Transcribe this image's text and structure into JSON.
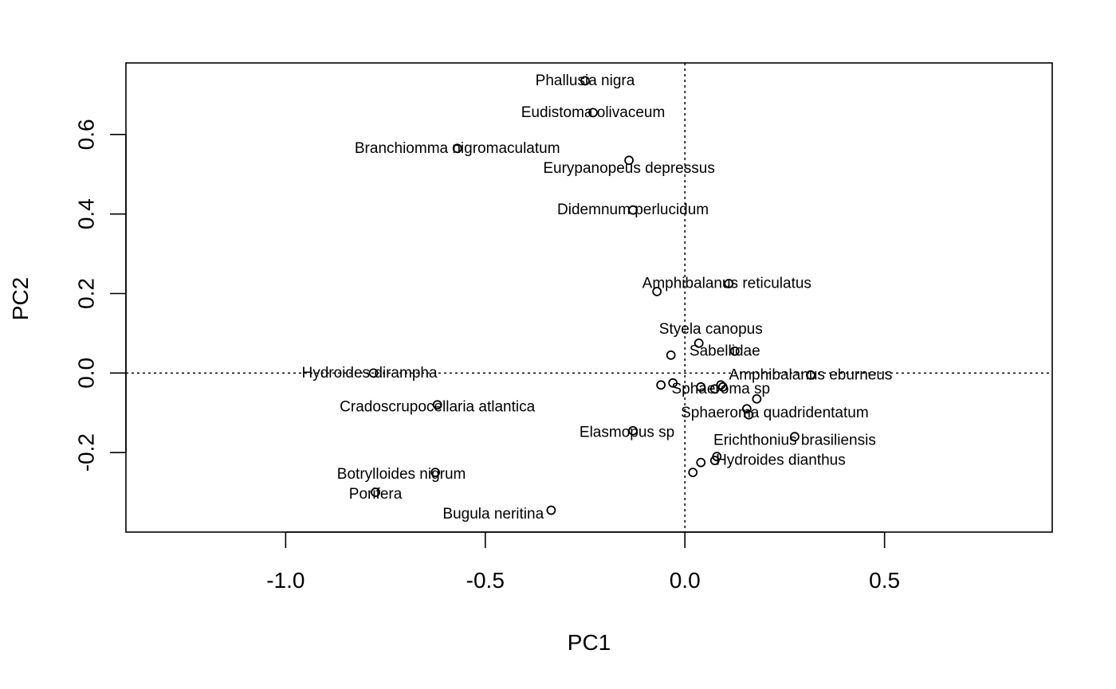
{
  "chart_data": {
    "type": "scatter",
    "title": "",
    "xlabel": "PC1",
    "ylabel": "PC2",
    "xlim": [
      -1.4,
      0.92
    ],
    "ylim": [
      -0.4,
      0.78
    ],
    "x_ticks": [
      -1.0,
      -0.5,
      0.0,
      0.5
    ],
    "x_tick_labels": [
      "-1.0",
      "-0.5",
      "0.0",
      "0.5"
    ],
    "y_ticks": [
      -0.2,
      0.0,
      0.2,
      0.4,
      0.6
    ],
    "y_tick_labels": [
      "-0.2",
      "0.0",
      "0.2",
      "0.4",
      "0.6"
    ],
    "reference_lines": {
      "x": 0,
      "y": 0,
      "style": "dotted"
    },
    "grid": false,
    "legend": "none",
    "points": [
      {
        "x": -0.25,
        "y": 0.735
      },
      {
        "x": -0.23,
        "y": 0.655
      },
      {
        "x": -0.57,
        "y": 0.565
      },
      {
        "x": -0.14,
        "y": 0.535
      },
      {
        "x": -0.13,
        "y": 0.41
      },
      {
        "x": -0.07,
        "y": 0.205
      },
      {
        "x": -0.035,
        "y": 0.045
      },
      {
        "x": 0.035,
        "y": 0.075
      },
      {
        "x": -0.06,
        "y": -0.03
      },
      {
        "x": -0.03,
        "y": -0.025
      },
      {
        "x": 0.04,
        "y": -0.035
      },
      {
        "x": 0.075,
        "y": -0.04
      },
      {
        "x": 0.09,
        "y": -0.03
      },
      {
        "x": 0.095,
        "y": -0.035
      },
      {
        "x": 0.18,
        "y": -0.065
      },
      {
        "x": 0.155,
        "y": -0.09
      },
      {
        "x": 0.16,
        "y": -0.105
      },
      {
        "x": -0.13,
        "y": -0.145
      },
      {
        "x": 0.275,
        "y": -0.16
      },
      {
        "x": 0.08,
        "y": -0.21
      },
      {
        "x": 0.075,
        "y": -0.22
      },
      {
        "x": 0.04,
        "y": -0.225
      },
      {
        "x": 0.02,
        "y": -0.25
      },
      {
        "x": -0.625,
        "y": -0.25
      },
      {
        "x": -0.775,
        "y": -0.3
      },
      {
        "x": -0.335,
        "y": -0.345
      },
      {
        "x": -0.78,
        "y": 0.0
      },
      {
        "x": -0.62,
        "y": -0.08
      },
      {
        "x": 0.11,
        "y": 0.225
      },
      {
        "x": 0.315,
        "y": -0.005
      },
      {
        "x": 0.125,
        "y": 0.055
      }
    ],
    "labels": [
      {
        "text": "Phallusia nigra",
        "x": -0.25,
        "y": 0.735
      },
      {
        "text": "Eudistoma olivaceum",
        "x": -0.23,
        "y": 0.655
      },
      {
        "text": "Branchiomma nigromaculatum",
        "x": -0.57,
        "y": 0.565
      },
      {
        "text": "Eurypanopeus depressus",
        "x": -0.14,
        "y": 0.515
      },
      {
        "text": "Didemnum perlucidum",
        "x": -0.13,
        "y": 0.41
      },
      {
        "text": "Amphibalanus reticulatus",
        "x": 0.105,
        "y": 0.225
      },
      {
        "text": "Styela canopus",
        "x": 0.065,
        "y": 0.11
      },
      {
        "text": "Sabellidae",
        "x": 0.1,
        "y": 0.055
      },
      {
        "text": "Hydroides dirampha",
        "x": -0.79,
        "y": 0.0
      },
      {
        "text": "Amphibalanus eburneus",
        "x": 0.315,
        "y": -0.005
      },
      {
        "text": "Sphaeroma sp",
        "x": 0.09,
        "y": -0.04
      },
      {
        "text": "Cradoscrupocellaria atlantica",
        "x": -0.62,
        "y": -0.085
      },
      {
        "text": "Sphaeroma quadridentatum",
        "x": 0.225,
        "y": -0.1
      },
      {
        "text": "Elasmopus sp",
        "x": -0.145,
        "y": -0.15
      },
      {
        "text": "Erichthonius brasiliensis",
        "x": 0.275,
        "y": -0.17
      },
      {
        "text": "Hydroides dianthus",
        "x": 0.24,
        "y": -0.22
      },
      {
        "text": "Botrylloides nigrum",
        "x": -0.71,
        "y": -0.255
      },
      {
        "text": "Porifera",
        "x": -0.775,
        "y": -0.305
      },
      {
        "text": "Bugula neritina",
        "x": -0.48,
        "y": -0.355
      }
    ]
  }
}
